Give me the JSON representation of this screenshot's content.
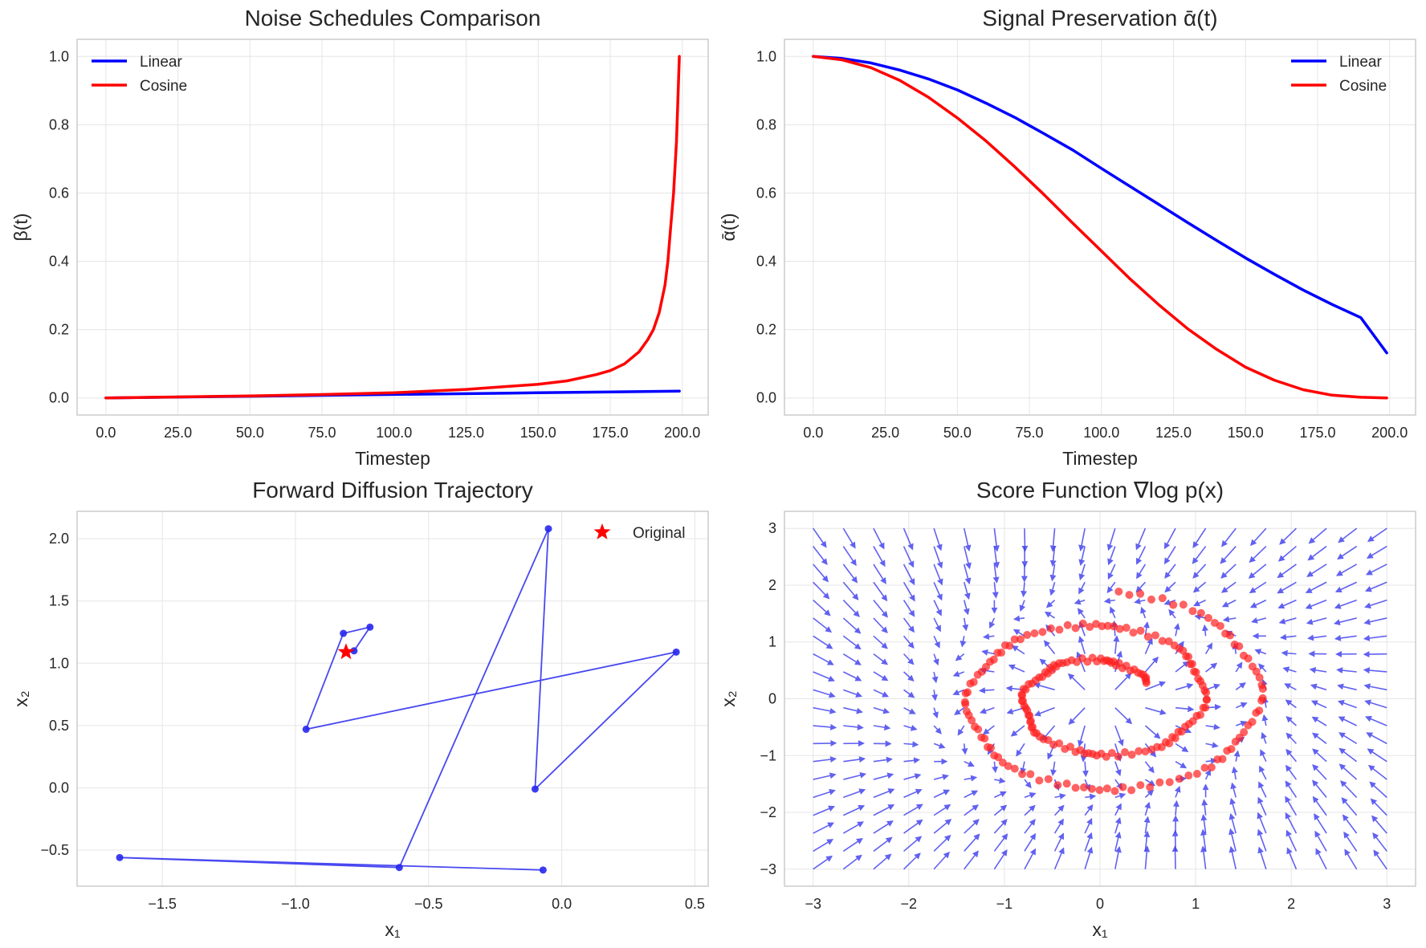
{
  "colors": {
    "blue": "#0000ff",
    "red": "#ff0000",
    "grid": "#e5e5e5",
    "frame": "#cccccc",
    "text": "#262626"
  },
  "chart_data": [
    {
      "id": "noise",
      "type": "line",
      "title": "Noise Schedules Comparison",
      "xlabel": "Timestep",
      "ylabel": "β(t)",
      "xlim": [
        -10,
        209
      ],
      "ylim": [
        -0.05,
        1.05
      ],
      "xticks": [
        0,
        25,
        50,
        75,
        100,
        125,
        150,
        175,
        200
      ],
      "yticks": [
        0.0,
        0.2,
        0.4,
        0.6,
        0.8,
        1.0
      ],
      "tick_decimals": 1,
      "grid": true,
      "legend": "top-left",
      "series": [
        {
          "name": "Linear",
          "color": "#0000ff",
          "x": [
            0,
            50,
            100,
            150,
            199
          ],
          "y": [
            0.0001,
            0.0051,
            0.0101,
            0.0151,
            0.02
          ]
        },
        {
          "name": "Cosine",
          "color": "#ff0000",
          "x": [
            0,
            25,
            50,
            75,
            100,
            125,
            150,
            160,
            170,
            175,
            180,
            185,
            188,
            190,
            192,
            194,
            195,
            196,
            197,
            198,
            199
          ],
          "y": [
            0.0,
            0.003,
            0.006,
            0.01,
            0.015,
            0.025,
            0.04,
            0.05,
            0.068,
            0.08,
            0.1,
            0.135,
            0.17,
            0.2,
            0.25,
            0.33,
            0.4,
            0.5,
            0.6,
            0.75,
            1.0
          ]
        }
      ]
    },
    {
      "id": "signal",
      "type": "line",
      "title": "Signal Preservation ᾱ(t)",
      "xlabel": "Timestep",
      "ylabel": "ᾱ(t)",
      "xlim": [
        -10,
        209
      ],
      "ylim": [
        -0.05,
        1.05
      ],
      "xticks": [
        0,
        25,
        50,
        75,
        100,
        125,
        150,
        175,
        200
      ],
      "yticks": [
        0.0,
        0.2,
        0.4,
        0.6,
        0.8,
        1.0
      ],
      "tick_decimals": 1,
      "grid": true,
      "legend": "top-right",
      "series": [
        {
          "name": "Linear",
          "color": "#0000ff",
          "x": [
            0,
            10,
            20,
            30,
            40,
            50,
            60,
            70,
            80,
            90,
            100,
            110,
            120,
            130,
            140,
            150,
            160,
            170,
            180,
            190,
            199
          ],
          "y": [
            1.0,
            0.994,
            0.981,
            0.96,
            0.934,
            0.902,
            0.863,
            0.821,
            0.774,
            0.726,
            0.672,
            0.619,
            0.566,
            0.513,
            0.461,
            0.41,
            0.362,
            0.316,
            0.274,
            0.235,
            0.132
          ]
        },
        {
          "name": "Cosine",
          "color": "#ff0000",
          "x": [
            0,
            10,
            20,
            30,
            40,
            50,
            60,
            70,
            80,
            90,
            100,
            110,
            120,
            130,
            140,
            150,
            160,
            170,
            180,
            190,
            199
          ],
          "y": [
            1.0,
            0.99,
            0.967,
            0.93,
            0.88,
            0.82,
            0.752,
            0.676,
            0.596,
            0.512,
            0.43,
            0.348,
            0.272,
            0.202,
            0.142,
            0.09,
            0.052,
            0.024,
            0.008,
            0.002,
            0.0
          ]
        }
      ]
    },
    {
      "id": "trajectory",
      "type": "scatter",
      "title": "Forward Diffusion Trajectory",
      "xlabel": "x₁",
      "ylabel": "x₂",
      "xlim": [
        -1.82,
        0.55
      ],
      "ylim": [
        -0.79,
        2.22
      ],
      "xticks": [
        -1.5,
        -1.0,
        -0.5,
        0.0,
        0.5
      ],
      "yticks": [
        -0.5,
        0.0,
        0.5,
        1.0,
        1.5,
        2.0
      ],
      "tick_decimals": 1,
      "grid": true,
      "legend": "top-right",
      "series": [
        {
          "name": "Original",
          "color": "#ff0000",
          "marker": "star",
          "x": [
            -0.81
          ],
          "y": [
            1.09
          ]
        },
        {
          "name": "",
          "color": "#2828ee",
          "marker": "circle",
          "x": [
            -0.81,
            -0.78,
            -0.72,
            -0.82,
            -0.96,
            0.43,
            -0.1,
            -0.05,
            -0.61,
            -1.66,
            -0.07
          ],
          "y": [
            1.09,
            1.1,
            1.29,
            1.24,
            0.47,
            1.09,
            -0.01,
            2.08,
            -0.64,
            -0.56,
            -0.66
          ]
        }
      ]
    },
    {
      "id": "score",
      "type": "scatter",
      "title": "Score Function ∇log p(x)",
      "xlabel": "x₁",
      "ylabel": "x₂",
      "xlim": [
        -3.3,
        3.3
      ],
      "ylim": [
        -3.3,
        3.3
      ],
      "xticks": [
        -3,
        -2,
        -1,
        0,
        1,
        2,
        3
      ],
      "yticks": [
        -3,
        -2,
        -1,
        0,
        1,
        2,
        3
      ],
      "tick_decimals": 0,
      "grid": true,
      "legend": "none",
      "quiver": {
        "color": "#3a3aee",
        "grid_range": [
          -3,
          3
        ],
        "grid_n": 20,
        "field": "spiral-ring"
      },
      "series": [
        {
          "name": "",
          "color": "#ff2020",
          "marker": "circle",
          "shape": "spiral",
          "n_points": 220
        }
      ]
    }
  ]
}
